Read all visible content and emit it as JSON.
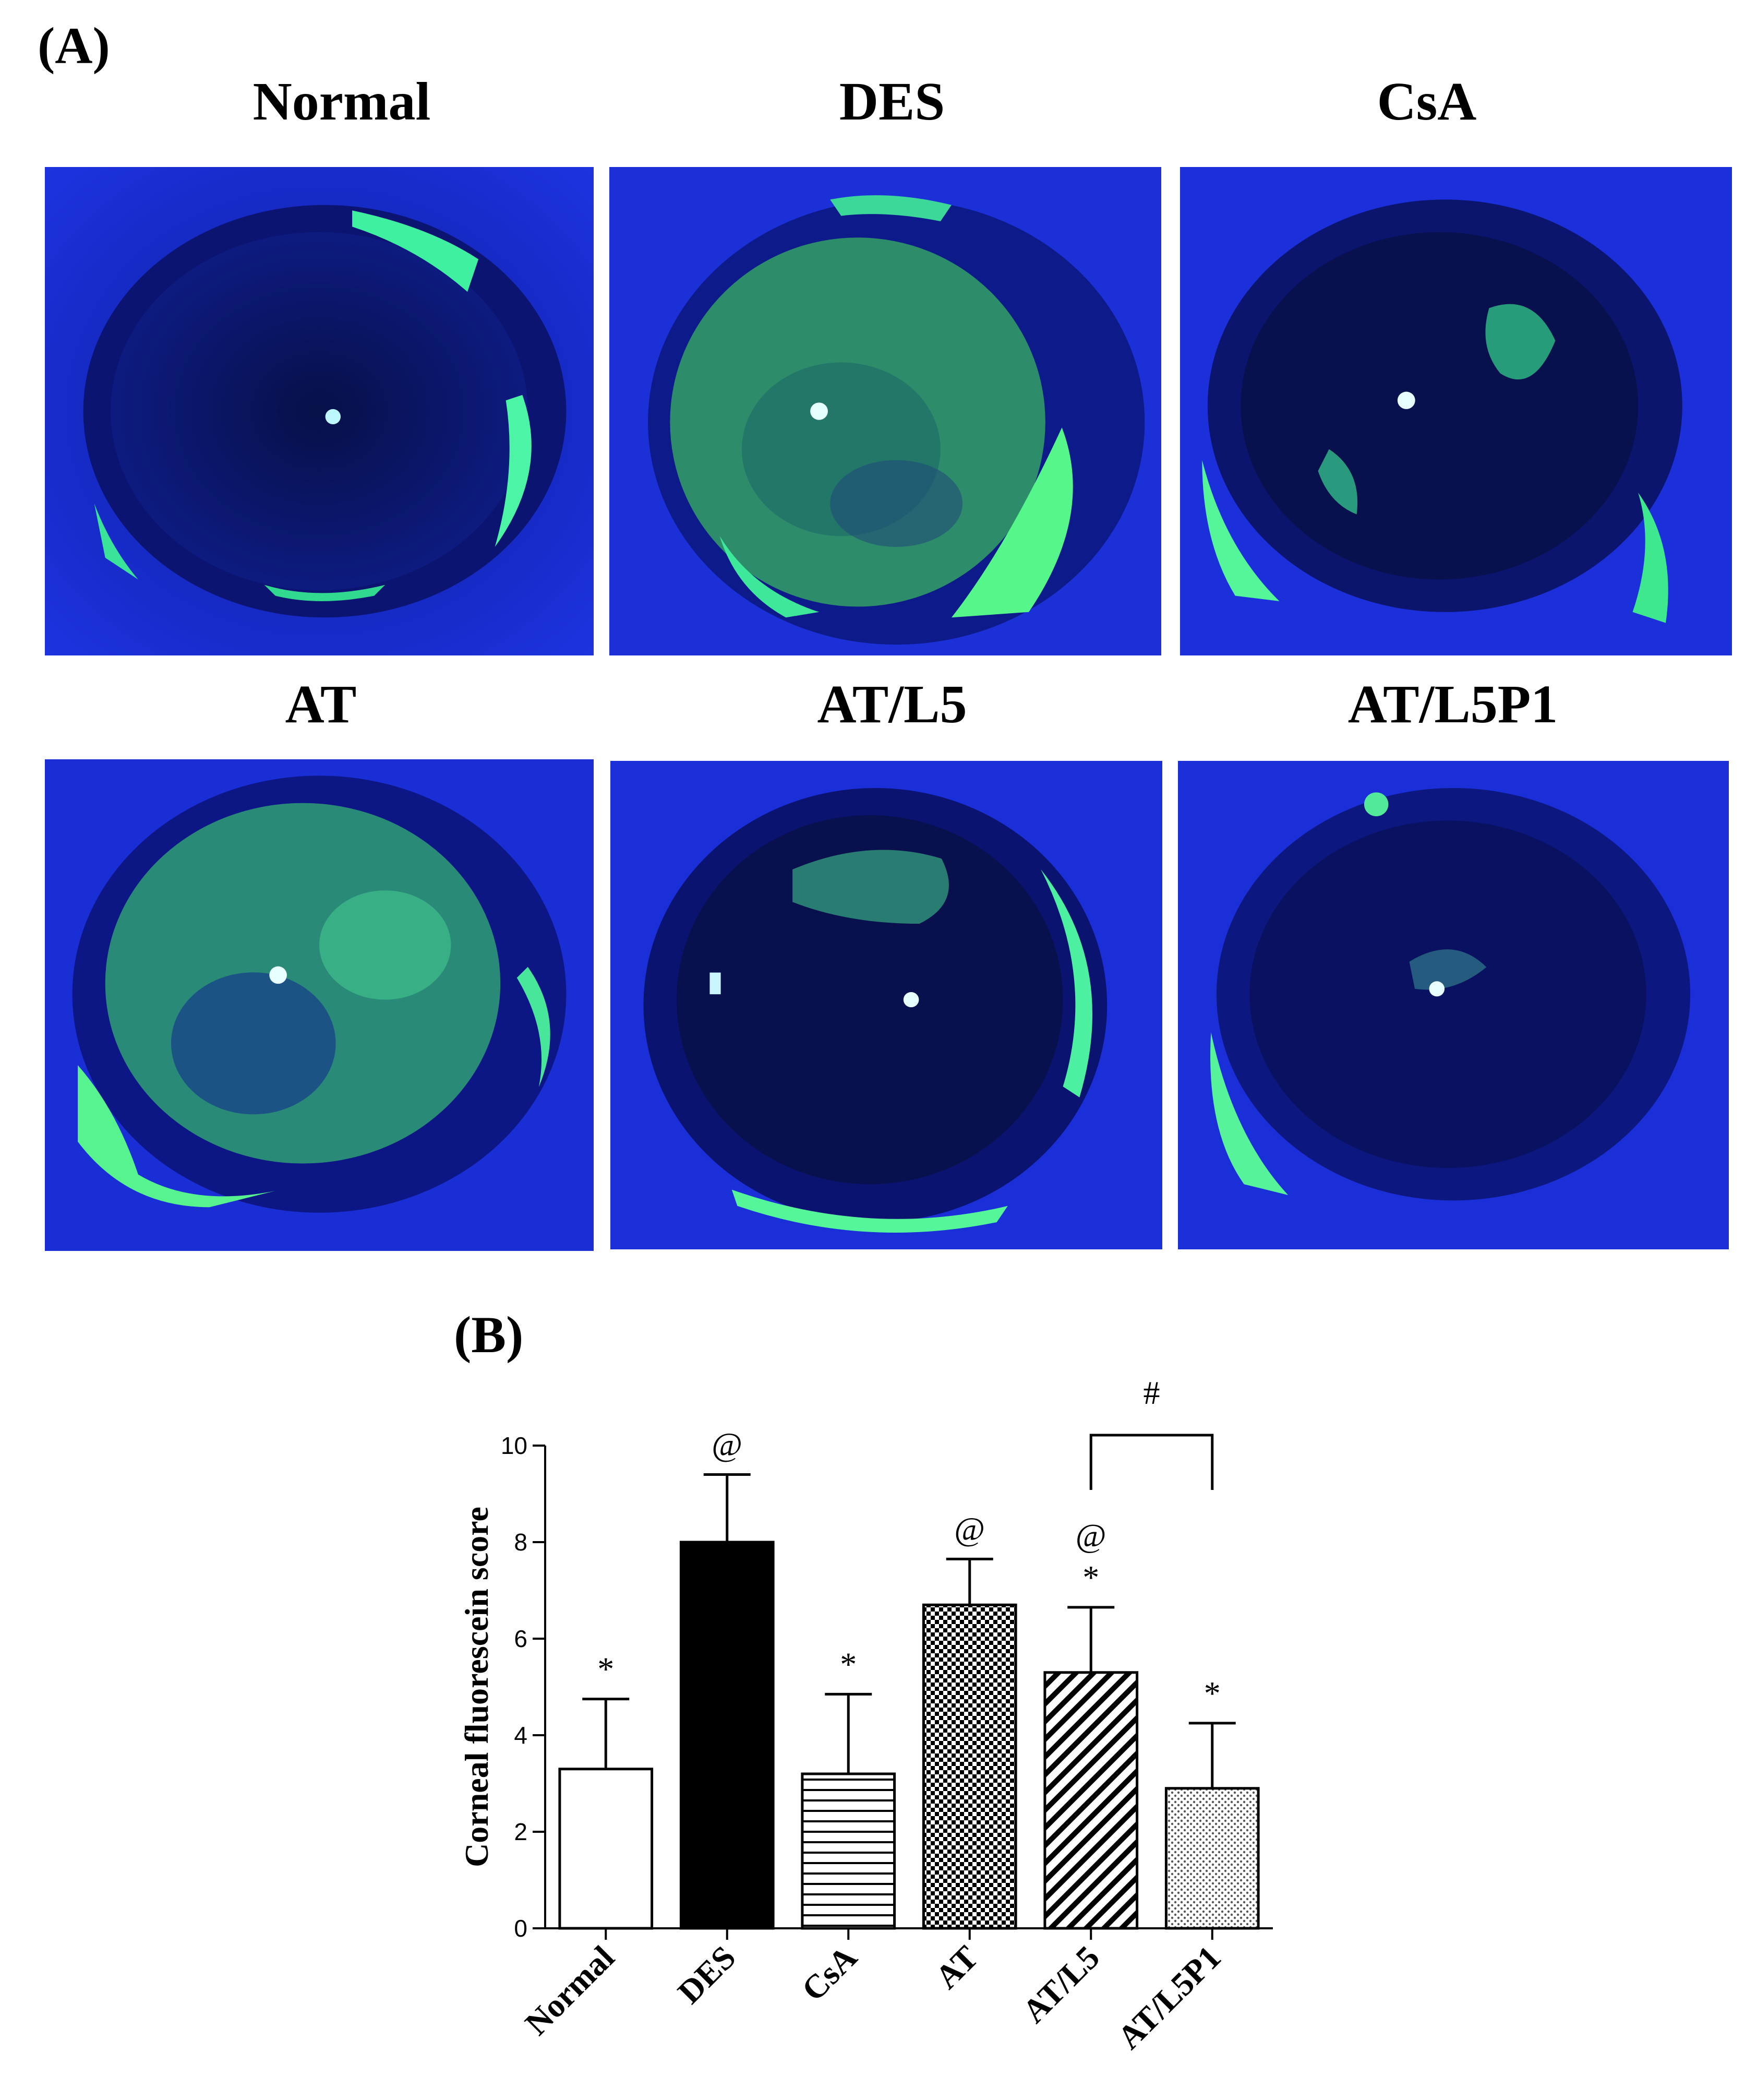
{
  "panel_a": {
    "label": "(A)",
    "images": [
      {
        "title": "Normal",
        "stain": "low"
      },
      {
        "title": "DES",
        "stain": "high"
      },
      {
        "title": "CsA",
        "stain": "low"
      },
      {
        "title": "AT",
        "stain": "high"
      },
      {
        "title": "AT/L5",
        "stain": "medium"
      },
      {
        "title": "AT/L5P1",
        "stain": "low"
      }
    ]
  },
  "panel_b": {
    "label": "(B)"
  },
  "chart_data": {
    "type": "bar",
    "title": "",
    "ylabel": "Corneal fluorescein score",
    "xlabel": "",
    "ylim": [
      0,
      10
    ],
    "yticks": [
      0,
      2,
      4,
      6,
      8,
      10
    ],
    "categories": [
      "Normal",
      "DES",
      "CsA",
      "AT",
      "AT/L5",
      "AT/L5P1"
    ],
    "values": [
      3.3,
      8.0,
      3.2,
      6.7,
      5.3,
      2.9
    ],
    "errors": [
      1.45,
      1.4,
      1.65,
      0.95,
      1.35,
      1.35
    ],
    "fills": [
      "open",
      "solid",
      "horizontal-lines",
      "checker",
      "diagonal-hatch",
      "dots"
    ],
    "annotations": [
      [
        "*"
      ],
      [
        "@"
      ],
      [
        "*"
      ],
      [
        "@"
      ],
      [
        "*",
        "@"
      ],
      [
        "*"
      ]
    ],
    "comparison": {
      "from": "AT/L5",
      "to": "AT/L5P1",
      "symbol": "#"
    }
  }
}
